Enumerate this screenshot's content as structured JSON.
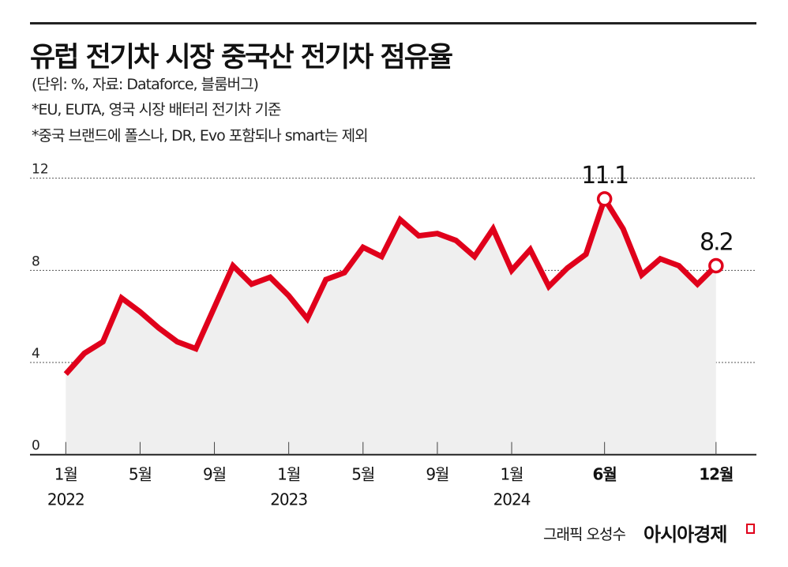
{
  "header": {
    "title": "유럽 전기차 시장 중국산 전기차 점유율",
    "unit_source": "(단위: %, 자료: Dataforce, 블룸버그)",
    "note1": "*EU, EUTA, 영국 시장 배터리 전기차 기준",
    "note2": "*중국 브랜드에 폴스나, DR, Evo 포함되나 smart는 제외"
  },
  "footer": {
    "credit": "그래픽 오성수",
    "logo": "아시아경제"
  },
  "colors": {
    "line": "#e0001b",
    "fill": "#efefef",
    "grid": "#555555"
  },
  "chart_data": {
    "type": "area",
    "title": "",
    "xlabel": "",
    "ylabel": "",
    "ylim": [
      0,
      12
    ],
    "yticks": [
      "0",
      "4",
      "8",
      "12"
    ],
    "ytick_values": [
      0,
      4,
      8,
      12
    ],
    "grid": true,
    "x": [
      "2022-01",
      "2022-02",
      "2022-03",
      "2022-04",
      "2022-05",
      "2022-06",
      "2022-07",
      "2022-08",
      "2022-09",
      "2022-10",
      "2022-11",
      "2022-12",
      "2023-01",
      "2023-02",
      "2023-03",
      "2023-04",
      "2023-05",
      "2023-06",
      "2023-07",
      "2023-08",
      "2023-09",
      "2023-10",
      "2023-11",
      "2023-12",
      "2024-01",
      "2024-02",
      "2024-03",
      "2024-04",
      "2024-05",
      "2024-06",
      "2024-07",
      "2024-08",
      "2024-09",
      "2024-10",
      "2024-11",
      "2024-12"
    ],
    "values": [
      3.5,
      4.4,
      4.9,
      6.8,
      6.2,
      5.5,
      4.9,
      4.6,
      6.4,
      8.2,
      7.4,
      7.7,
      6.9,
      5.9,
      7.6,
      7.9,
      9.0,
      8.6,
      10.2,
      9.5,
      9.6,
      9.3,
      8.6,
      9.8,
      8.0,
      8.9,
      7.3,
      8.1,
      8.7,
      11.1,
      9.8,
      7.8,
      8.5,
      8.2,
      7.4,
      8.2
    ],
    "xticks": [
      {
        "index": 0,
        "month": "1월",
        "year": "2022",
        "bold": false
      },
      {
        "index": 4,
        "month": "5월",
        "year": "",
        "bold": false
      },
      {
        "index": 8,
        "month": "9월",
        "year": "",
        "bold": false
      },
      {
        "index": 12,
        "month": "1월",
        "year": "2023",
        "bold": false
      },
      {
        "index": 16,
        "month": "5월",
        "year": "",
        "bold": false
      },
      {
        "index": 20,
        "month": "9월",
        "year": "",
        "bold": false
      },
      {
        "index": 24,
        "month": "1월",
        "year": "2024",
        "bold": false
      },
      {
        "index": 29,
        "month": "6월",
        "year": "",
        "bold": true
      },
      {
        "index": 35,
        "month": "12월",
        "year": "",
        "bold": true
      }
    ],
    "annotations": [
      {
        "index": 29,
        "label": "11.1"
      },
      {
        "index": 35,
        "label": "8.2"
      }
    ]
  }
}
